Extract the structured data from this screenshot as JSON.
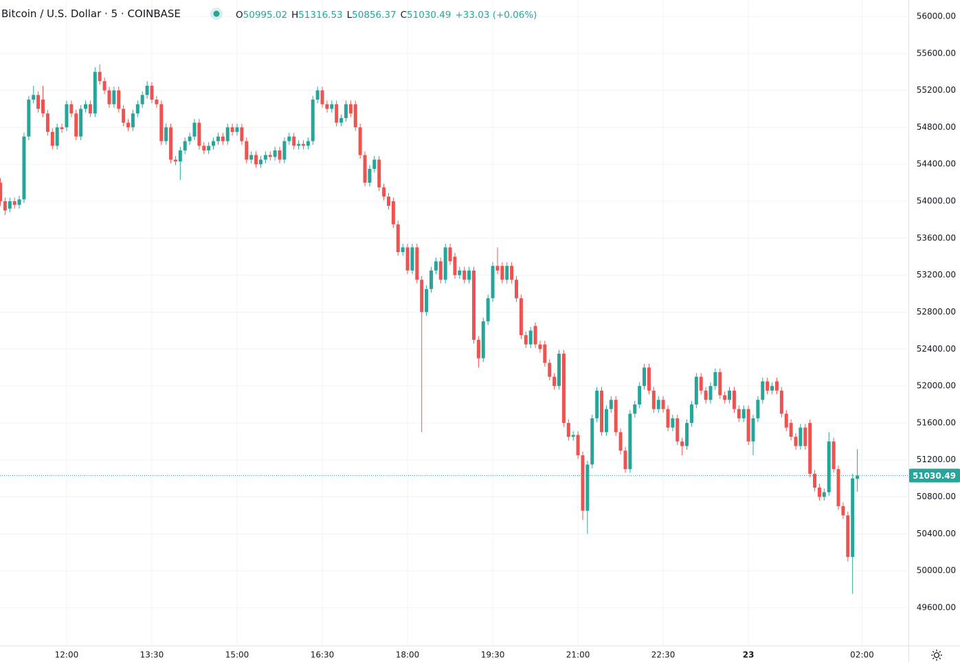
{
  "chart_data": {
    "type": "candlestick",
    "title": "Bitcoin / U.S. Dollar",
    "interval": 5,
    "exchange": "COINBASE",
    "legend_labels": [
      "O",
      "H",
      "L",
      "C"
    ],
    "change": "+33.03 (+0.06%)",
    "up_color": "#26a69a",
    "down_color": "#ef5350",
    "grid": true,
    "x": [
      "10:50",
      "10:55",
      "11:00",
      "11:05",
      "11:10",
      "11:15",
      "11:20",
      "11:25",
      "11:30",
      "11:35",
      "11:40",
      "11:45",
      "11:50",
      "11:55",
      "12:00",
      "12:05",
      "12:10",
      "12:15",
      "12:20",
      "12:25",
      "12:30",
      "12:35",
      "12:40",
      "12:45",
      "12:50",
      "12:55",
      "13:00",
      "13:05",
      "13:10",
      "13:15",
      "13:20",
      "13:25",
      "13:30",
      "13:35",
      "13:40",
      "13:45",
      "13:50",
      "13:55",
      "14:00",
      "14:05",
      "14:10",
      "14:15",
      "14:20",
      "14:25",
      "14:30",
      "14:35",
      "14:40",
      "14:45",
      "14:50",
      "14:55",
      "15:00",
      "15:05",
      "15:10",
      "15:15",
      "15:20",
      "15:25",
      "15:30",
      "15:35",
      "15:40",
      "15:45",
      "15:50",
      "15:55",
      "16:00",
      "16:05",
      "16:10",
      "16:15",
      "16:20",
      "16:25",
      "16:30",
      "16:35",
      "16:40",
      "16:45",
      "16:50",
      "16:55",
      "17:00",
      "17:05",
      "17:10",
      "17:15",
      "17:20",
      "17:25",
      "17:30",
      "17:35",
      "17:40",
      "17:45",
      "17:50",
      "17:55",
      "18:00",
      "18:05",
      "18:10",
      "18:15",
      "18:20",
      "18:25",
      "18:30",
      "18:35",
      "18:40",
      "18:45",
      "18:50",
      "18:55",
      "19:00",
      "19:05",
      "19:10",
      "19:15",
      "19:20",
      "19:25",
      "19:30",
      "19:35",
      "19:40",
      "19:45",
      "19:50",
      "19:55",
      "20:00",
      "20:05",
      "20:10",
      "20:15",
      "20:20",
      "20:25",
      "20:30",
      "20:35",
      "20:40",
      "20:45",
      "20:50",
      "20:55",
      "21:00",
      "21:05",
      "21:10",
      "21:15",
      "21:20",
      "21:25",
      "21:30",
      "21:35",
      "21:40",
      "21:45",
      "21:50",
      "21:55",
      "22:00",
      "22:05",
      "22:10",
      "22:15",
      "22:20",
      "22:25",
      "22:30",
      "22:35",
      "22:40",
      "22:45",
      "22:50",
      "22:55",
      "23:00",
      "23:05",
      "23:10",
      "23:15",
      "23:20",
      "23:25",
      "23:30",
      "23:35",
      "23:40",
      "23:45",
      "23:50",
      "23:55",
      "00:00",
      "00:05",
      "00:10",
      "00:15",
      "00:20",
      "00:25",
      "00:30",
      "00:35",
      "00:40",
      "00:45",
      "00:50",
      "00:55",
      "01:00",
      "01:05",
      "01:10",
      "01:15",
      "01:20",
      "01:25",
      "01:30",
      "01:35",
      "01:40",
      "01:45",
      "01:50",
      "01:55"
    ],
    "open": [
      54200,
      54000,
      53920,
      54000,
      53960,
      54020,
      54700,
      55100,
      55150,
      55100,
      54950,
      54750,
      54600,
      54800,
      54800,
      55050,
      54950,
      54700,
      55000,
      55050,
      54950,
      55400,
      55300,
      55200,
      55050,
      55200,
      55000,
      54850,
      54800,
      54950,
      55050,
      55150,
      55250,
      55100,
      55050,
      54650,
      54800,
      54450,
      54430,
      54550,
      54650,
      54700,
      54850,
      54600,
      54550,
      54600,
      54650,
      54700,
      54650,
      54800,
      54750,
      54800,
      54650,
      54450,
      54500,
      54400,
      54450,
      54500,
      54480,
      54550,
      54450,
      54650,
      54700,
      54600,
      54620,
      54600,
      54650,
      55100,
      55200,
      55050,
      55000,
      55050,
      54850,
      54900,
      55050,
      55050,
      54800,
      54500,
      54200,
      54350,
      54450,
      54150,
      54050,
      54000,
      53750,
      53450,
      53500,
      53250,
      53500,
      53150,
      52800,
      53050,
      53250,
      53350,
      53150,
      53500,
      53400,
      53200,
      53250,
      53150,
      53250,
      52500,
      52300,
      52700,
      52950,
      53300,
      53300,
      53150,
      53300,
      53150,
      52950,
      52550,
      52450,
      52650,
      52450,
      52450,
      52250,
      52100,
      52000,
      52350,
      51600,
      51450,
      51470,
      51250,
      50650,
      51150,
      51650,
      51950,
      51500,
      51750,
      51850,
      51500,
      51300,
      51100,
      51700,
      51800,
      52000,
      52200,
      51950,
      51750,
      51850,
      51750,
      51550,
      51650,
      51400,
      51350,
      51600,
      51800,
      52100,
      51950,
      51850,
      52000,
      52150,
      51900,
      51850,
      51950,
      51750,
      51650,
      51750,
      51400,
      51650,
      51850,
      52050,
      51950,
      52050,
      51950,
      51700,
      51600,
      51450,
      51350,
      51550,
      51600,
      51050,
      50900,
      50800,
      50850,
      51400,
      51100,
      50700,
      50600,
      50150,
      50995.02
    ],
    "high": [
      54250,
      54040,
      54040,
      54040,
      54060,
      54740,
      55140,
      55250,
      55190,
      55250,
      54990,
      54790,
      54840,
      54840,
      55090,
      55090,
      54990,
      55040,
      55090,
      55090,
      55450,
      55480,
      55340,
      55240,
      55240,
      55240,
      55040,
      54890,
      54990,
      55090,
      55190,
      55300,
      55290,
      55140,
      55090,
      54840,
      54840,
      54490,
      54590,
      54690,
      54740,
      54890,
      54890,
      54640,
      54640,
      54690,
      54740,
      54740,
      54840,
      54840,
      54840,
      54840,
      54690,
      54540,
      54540,
      54490,
      54540,
      54540,
      54590,
      54590,
      54690,
      54740,
      54740,
      54660,
      54660,
      54690,
      55140,
      55240,
      55240,
      55090,
      55090,
      55090,
      54940,
      55090,
      55090,
      55090,
      54840,
      54540,
      54390,
      54490,
      54490,
      54190,
      54090,
      54040,
      53790,
      53540,
      53540,
      53540,
      53540,
      53190,
      53090,
      53290,
      53390,
      53390,
      53540,
      53540,
      53440,
      53290,
      53290,
      53290,
      53290,
      52540,
      52740,
      52990,
      53340,
      53500,
      53340,
      53340,
      53340,
      53190,
      52990,
      52590,
      52640,
      52690,
      52490,
      52490,
      52290,
      52140,
      52390,
      52390,
      51640,
      51510,
      51510,
      51290,
      51190,
      51690,
      51990,
      51990,
      51790,
      51890,
      51890,
      51540,
      51340,
      51740,
      51840,
      52040,
      52240,
      52240,
      51990,
      51890,
      51890,
      51790,
      51690,
      51690,
      51440,
      51640,
      51840,
      52140,
      52140,
      51990,
      52040,
      52190,
      52190,
      51940,
      51990,
      51990,
      51790,
      51790,
      51790,
      51690,
      51890,
      52090,
      52090,
      52040,
      52090,
      51990,
      51740,
      51640,
      51490,
      51590,
      51590,
      51640,
      51090,
      50940,
      50890,
      51500,
      51440,
      51140,
      50740,
      50640,
      51050,
      51316.53
    ],
    "low": [
      53950,
      53850,
      53880,
      53920,
      53920,
      53980,
      54660,
      55060,
      54960,
      54910,
      54710,
      54560,
      54560,
      54740,
      54760,
      54910,
      54660,
      54660,
      54960,
      54910,
      54910,
      55260,
      55160,
      55010,
      55010,
      54960,
      54810,
      54760,
      54760,
      54910,
      55010,
      55110,
      55060,
      55010,
      54610,
      54610,
      54410,
      54390,
      54230,
      54510,
      54610,
      54660,
      54560,
      54510,
      54510,
      54560,
      54610,
      54610,
      54610,
      54710,
      54710,
      54610,
      54410,
      54410,
      54360,
      54360,
      54410,
      54440,
      54440,
      54410,
      54410,
      54610,
      54560,
      54560,
      54560,
      54560,
      54610,
      55060,
      55010,
      54960,
      54960,
      54810,
      54810,
      54860,
      54910,
      54760,
      54460,
      54160,
      54160,
      54310,
      54110,
      54010,
      53910,
      53710,
      53410,
      53410,
      53210,
      53210,
      53110,
      51500,
      52760,
      53010,
      53210,
      53110,
      53110,
      53310,
      53160,
      53160,
      53110,
      53110,
      52460,
      52200,
      52260,
      52660,
      52910,
      53210,
      53110,
      53110,
      53110,
      52910,
      52510,
      52410,
      52410,
      52410,
      52360,
      52210,
      52060,
      51960,
      51960,
      51560,
      51410,
      51410,
      51210,
      50550,
      50400,
      51110,
      51610,
      51460,
      51460,
      51710,
      51460,
      51260,
      51060,
      51060,
      51660,
      51760,
      51960,
      51910,
      51710,
      51710,
      51710,
      51510,
      51510,
      51360,
      51250,
      51310,
      51560,
      51760,
      51910,
      51810,
      51810,
      51960,
      51860,
      51810,
      51810,
      51710,
      51610,
      51610,
      51360,
      51250,
      51610,
      51810,
      51910,
      51910,
      51910,
      51660,
      51510,
      51410,
      51310,
      51310,
      51310,
      51010,
      50860,
      50760,
      50760,
      50810,
      51060,
      50660,
      50560,
      50100,
      49750,
      50856.37
    ],
    "close": [
      54000,
      53900,
      54000,
      53960,
      54020,
      54700,
      55100,
      55150,
      55000,
      54950,
      54750,
      54600,
      54800,
      54780,
      55050,
      54950,
      54700,
      55000,
      55050,
      54950,
      55400,
      55300,
      55200,
      55050,
      55200,
      55000,
      54850,
      54800,
      54950,
      55050,
      55150,
      55250,
      55100,
      55050,
      54650,
      54800,
      54450,
      54430,
      54550,
      54650,
      54700,
      54850,
      54600,
      54550,
      54600,
      54650,
      54700,
      54650,
      54800,
      54750,
      54800,
      54650,
      54450,
      54500,
      54400,
      54450,
      54500,
      54480,
      54550,
      54450,
      54650,
      54700,
      54600,
      54620,
      54600,
      54650,
      55100,
      55200,
      55050,
      55000,
      55050,
      54850,
      54900,
      55050,
      54950,
      54800,
      54500,
      54200,
      54350,
      54450,
      54150,
      54050,
      53950,
      53750,
      53450,
      53500,
      53250,
      53500,
      53150,
      52800,
      53050,
      53250,
      53350,
      53150,
      53500,
      53350,
      53200,
      53250,
      53150,
      53250,
      52500,
      52300,
      52700,
      52950,
      53300,
      53250,
      53150,
      53300,
      53150,
      52950,
      52550,
      52450,
      52600,
      52450,
      52400,
      52250,
      52100,
      52000,
      52350,
      51600,
      51450,
      51470,
      51250,
      50650,
      51150,
      51650,
      51950,
      51500,
      51750,
      51850,
      51500,
      51300,
      51100,
      51700,
      51800,
      52000,
      52200,
      51950,
      51750,
      51850,
      51750,
      51550,
      51650,
      51400,
      51350,
      51600,
      51800,
      52100,
      51950,
      51850,
      52000,
      52150,
      51900,
      51850,
      51950,
      51750,
      51650,
      51750,
      51400,
      51650,
      51850,
      52050,
      51950,
      52000,
      51950,
      51700,
      51550,
      51450,
      51350,
      51550,
      51350,
      51050,
      50900,
      50800,
      50850,
      51400,
      51100,
      50700,
      50600,
      50150,
      51000,
      51030.49
    ],
    "ylim": [
      49191,
      56178
    ],
    "yticks": [
      {
        "value": 56000,
        "label": "56000.00"
      },
      {
        "value": 55600,
        "label": "55600.00"
      },
      {
        "value": 55200,
        "label": "55200.00"
      },
      {
        "value": 54800,
        "label": "54800.00"
      },
      {
        "value": 54400,
        "label": "54400.00"
      },
      {
        "value": 54000,
        "label": "54000.00"
      },
      {
        "value": 53600,
        "label": "53600.00"
      },
      {
        "value": 53200,
        "label": "53200.00"
      },
      {
        "value": 52800,
        "label": "52800.00"
      },
      {
        "value": 52400,
        "label": "52400.00"
      },
      {
        "value": 52000,
        "label": "52000.00"
      },
      {
        "value": 51600,
        "label": "51600.00"
      },
      {
        "value": 51200,
        "label": "51200.00"
      },
      {
        "value": 50800,
        "label": "50800.00"
      },
      {
        "value": 50400,
        "label": "50400.00"
      },
      {
        "value": 50000,
        "label": "50000.00"
      },
      {
        "value": 49600,
        "label": "49600.00"
      }
    ],
    "xticks": [
      "12:00",
      "13:30",
      "15:00",
      "16:30",
      "18:00",
      "19:30",
      "21:00",
      "22:30",
      {
        "value": "00:00",
        "label": "23"
      },
      "02:00"
    ]
  }
}
